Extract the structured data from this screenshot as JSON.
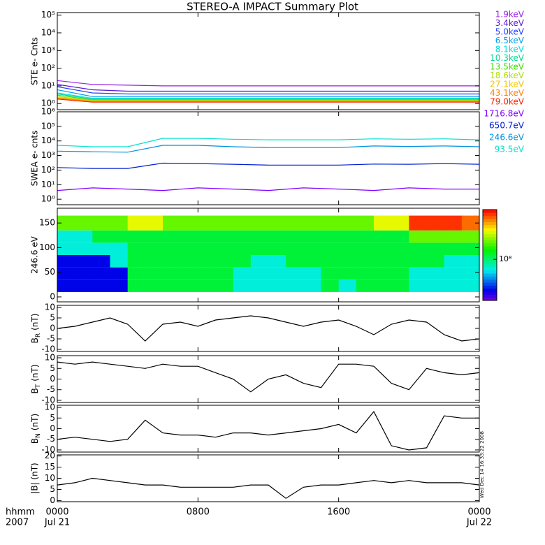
{
  "title": "STEREO-A IMPACT Summary Plot",
  "footer": {
    "time_label": "hhmm",
    "year": "2007",
    "stamp": "Wed Dec 14 16:33:22 2008"
  },
  "chart_data": [
    {
      "type": "line",
      "y_label": "STE e- Cnts",
      "log": true,
      "ylim": [
        0.45,
        140000
      ],
      "yticks": [
        {
          "value": 1,
          "label": "10⁰"
        },
        {
          "value": 10,
          "label": "10¹"
        },
        {
          "value": 100,
          "label": "10²"
        },
        {
          "value": 1000,
          "label": "10³"
        },
        {
          "value": 10000,
          "label": "10⁴"
        },
        {
          "value": 100000,
          "label": "10⁵"
        }
      ],
      "xlim": [
        0,
        24
      ],
      "x": [
        0,
        2,
        4,
        6,
        8,
        10,
        12,
        14,
        16,
        18,
        20,
        22,
        24
      ],
      "legend": "right-outside",
      "series": [
        {
          "name": "1.9keV",
          "color": "#9a1ee6",
          "values": [
            20,
            12,
            11,
            10,
            10,
            10,
            10,
            10,
            10,
            10,
            10,
            10,
            10
          ]
        },
        {
          "name": "3.4keV",
          "color": "#5a14d8",
          "values": [
            12,
            6,
            5,
            5,
            5,
            5,
            5,
            5,
            5,
            5,
            5,
            5,
            5
          ]
        },
        {
          "name": "5.0keV",
          "color": "#2040ff",
          "values": [
            9,
            4,
            3.5,
            3.5,
            3.5,
            3.5,
            3.5,
            3.5,
            3.5,
            3.5,
            3.5,
            3.5,
            3.5
          ]
        },
        {
          "name": "6.5keV",
          "color": "#00a0f0",
          "values": [
            6,
            2.5,
            2.5,
            2.5,
            2.5,
            2.5,
            2.5,
            2.5,
            2.5,
            2.5,
            2.5,
            2.5,
            2.5
          ]
        },
        {
          "name": "8.1keV",
          "color": "#00e0e0",
          "values": [
            4,
            2,
            2,
            2,
            2,
            2,
            2,
            2,
            2,
            2,
            2,
            2,
            2
          ]
        },
        {
          "name": "10.3keV",
          "color": "#00d890",
          "values": [
            3.5,
            1.8,
            1.8,
            1.8,
            1.8,
            1.8,
            1.8,
            1.8,
            1.8,
            1.8,
            1.8,
            1.8,
            1.8
          ]
        },
        {
          "name": "13.5keV",
          "color": "#40e000",
          "values": [
            3,
            1.6,
            1.6,
            1.6,
            1.6,
            1.6,
            1.6,
            1.6,
            1.6,
            1.6,
            1.6,
            1.6,
            1.6
          ]
        },
        {
          "name": "18.6keV",
          "color": "#b0e000",
          "values": [
            2.5,
            1.5,
            1.5,
            1.5,
            1.5,
            1.5,
            1.5,
            1.5,
            1.5,
            1.5,
            1.5,
            1.5,
            1.5
          ]
        },
        {
          "name": "27.1keV",
          "color": "#f0c800",
          "values": [
            2.2,
            1.4,
            1.4,
            1.4,
            1.4,
            1.4,
            1.4,
            1.4,
            1.4,
            1.4,
            1.4,
            1.4,
            1.4
          ]
        },
        {
          "name": "43.1keV",
          "color": "#ff8000",
          "values": [
            2,
            1.3,
            1.3,
            1.3,
            1.3,
            1.3,
            1.3,
            1.3,
            1.3,
            1.3,
            1.3,
            1.3,
            1.3
          ]
        },
        {
          "name": "79.0keV",
          "color": "#ff2000",
          "values": [
            1.8,
            1.2,
            1.2,
            1.2,
            1.2,
            1.2,
            1.2,
            1.2,
            1.2,
            1.2,
            1.2,
            1.2,
            1.2
          ]
        }
      ]
    },
    {
      "type": "line",
      "y_label": "SWEA e- cnts",
      "log": true,
      "ylim": [
        0.42,
        1000000
      ],
      "yticks": [
        {
          "value": 1,
          "label": "10⁰"
        },
        {
          "value": 10,
          "label": "10¹"
        },
        {
          "value": 100,
          "label": "10²"
        },
        {
          "value": 1000,
          "label": "10³"
        },
        {
          "value": 10000,
          "label": "10⁴"
        },
        {
          "value": 100000,
          "label": "10⁵"
        },
        {
          "value": 1000000,
          "label": "10⁶"
        }
      ],
      "xlim": [
        0,
        24
      ],
      "x": [
        0,
        2,
        4,
        6,
        8,
        10,
        12,
        14,
        16,
        18,
        20,
        22,
        24
      ],
      "legend": "right-outside",
      "series": [
        {
          "name": "1716.8eV",
          "color": "#8000ff",
          "values": [
            4,
            6,
            5,
            4,
            6,
            5,
            4,
            6,
            5,
            4,
            6,
            5,
            5
          ]
        },
        {
          "name": "650.7eV",
          "color": "#0020d0",
          "values": [
            150,
            130,
            130,
            300,
            280,
            250,
            220,
            220,
            220,
            260,
            250,
            280,
            250
          ]
        },
        {
          "name": "246.6eV",
          "color": "#0090e0",
          "values": [
            2000,
            1800,
            1700,
            5000,
            5000,
            4000,
            3500,
            3500,
            3500,
            4500,
            4200,
            4500,
            4000
          ]
        },
        {
          "name": "93.5eV",
          "color": "#00e0d0",
          "values": [
            5000,
            4000,
            4000,
            15000,
            15000,
            13000,
            12000,
            12000,
            12000,
            14000,
            13000,
            14000,
            12000
          ]
        }
      ]
    },
    {
      "type": "heatmap",
      "y_label": "246.6 eV",
      "ylim": [
        -10,
        180
      ],
      "yticks": [
        0,
        50,
        100,
        150
      ],
      "xlim": [
        0,
        24
      ],
      "x_edges": [
        0,
        1,
        2,
        3,
        4,
        5,
        6,
        7,
        8,
        9,
        10,
        11,
        12,
        13,
        14,
        15,
        16,
        17,
        18,
        19,
        20,
        21,
        22,
        23,
        24
      ],
      "y_edges": [
        10,
        35,
        60,
        85,
        110,
        135,
        165
      ],
      "clim": [
        20000000,
        700000000
      ],
      "clog": true,
      "cticks": [
        {
          "value": 100000000,
          "label": "10⁸"
        }
      ],
      "z": [
        [
          30000000,
          30000000,
          30000000,
          30000000,
          120000000,
          120000000,
          120000000,
          120000000,
          120000000,
          120000000,
          70000000,
          70000000,
          70000000,
          70000000,
          70000000,
          120000000,
          70000000,
          120000000,
          120000000,
          120000000,
          70000000,
          70000000,
          70000000,
          70000000
        ],
        [
          30000000,
          30000000,
          30000000,
          30000000,
          120000000,
          120000000,
          120000000,
          120000000,
          120000000,
          120000000,
          70000000,
          70000000,
          70000000,
          70000000,
          70000000,
          120000000,
          120000000,
          120000000,
          120000000,
          120000000,
          70000000,
          70000000,
          70000000,
          70000000
        ],
        [
          30000000,
          30000000,
          30000000,
          70000000,
          120000000,
          120000000,
          120000000,
          120000000,
          120000000,
          120000000,
          120000000,
          70000000,
          70000000,
          120000000,
          120000000,
          120000000,
          120000000,
          120000000,
          120000000,
          120000000,
          120000000,
          120000000,
          70000000,
          70000000
        ],
        [
          70000000,
          70000000,
          70000000,
          70000000,
          120000000,
          120000000,
          120000000,
          120000000,
          120000000,
          120000000,
          120000000,
          120000000,
          120000000,
          120000000,
          120000000,
          120000000,
          120000000,
          120000000,
          120000000,
          120000000,
          120000000,
          120000000,
          120000000,
          120000000
        ],
        [
          70000000,
          70000000,
          120000000,
          120000000,
          120000000,
          120000000,
          120000000,
          120000000,
          120000000,
          120000000,
          120000000,
          120000000,
          120000000,
          120000000,
          120000000,
          120000000,
          120000000,
          120000000,
          120000000,
          120000000,
          200000000,
          200000000,
          200000000,
          200000000
        ],
        [
          200000000,
          200000000,
          200000000,
          200000000,
          300000000,
          300000000,
          200000000,
          200000000,
          200000000,
          200000000,
          200000000,
          200000000,
          200000000,
          200000000,
          200000000,
          200000000,
          200000000,
          200000000,
          300000000,
          300000000,
          600000000,
          600000000,
          600000000,
          500000000
        ]
      ]
    },
    {
      "type": "line",
      "y_label": "B",
      "y_label_sub": "R",
      "y_label_unit": "(nT)",
      "ylim": [
        -11,
        11
      ],
      "yticks": [
        -10,
        -5,
        0,
        5,
        10
      ],
      "xlim": [
        0,
        24
      ],
      "x": [
        0,
        1,
        2,
        3,
        4,
        5,
        6,
        7,
        8,
        9,
        10,
        11,
        12,
        13,
        14,
        15,
        16,
        17,
        18,
        19,
        20,
        21,
        22,
        23,
        24
      ],
      "series": [
        {
          "color": "#000000",
          "values": [
            0,
            1,
            3,
            5,
            2,
            -6,
            2,
            3,
            1,
            4,
            5,
            6,
            5,
            3,
            1,
            3,
            4,
            1,
            -3,
            2,
            4,
            3,
            -3,
            -6,
            -5
          ]
        }
      ]
    },
    {
      "type": "line",
      "y_label": "B",
      "y_label_sub": "T",
      "y_label_unit": "(nT)",
      "ylim": [
        -11,
        11
      ],
      "yticks": [
        -10,
        -5,
        0,
        5,
        10
      ],
      "xlim": [
        0,
        24
      ],
      "x": [
        0,
        1,
        2,
        3,
        4,
        5,
        6,
        7,
        8,
        9,
        10,
        11,
        12,
        13,
        14,
        15,
        16,
        17,
        18,
        19,
        20,
        21,
        22,
        23,
        24
      ],
      "series": [
        {
          "color": "#000000",
          "values": [
            8,
            7,
            8,
            7,
            6,
            5,
            7,
            6,
            6,
            3,
            0,
            -6,
            0,
            2,
            -2,
            -4,
            7,
            7,
            6,
            -2,
            -5,
            5,
            3,
            2,
            3
          ]
        }
      ]
    },
    {
      "type": "line",
      "y_label": "B",
      "y_label_sub": "N",
      "y_label_unit": "(nT)",
      "ylim": [
        -11,
        11
      ],
      "yticks": [
        -10,
        -5,
        0,
        5,
        10
      ],
      "xlim": [
        0,
        24
      ],
      "x": [
        0,
        1,
        2,
        3,
        4,
        5,
        6,
        7,
        8,
        9,
        10,
        11,
        12,
        13,
        14,
        15,
        16,
        17,
        18,
        19,
        20,
        21,
        22,
        23,
        24
      ],
      "series": [
        {
          "color": "#000000",
          "values": [
            -5,
            -4,
            -5,
            -6,
            -5,
            4,
            -2,
            -3,
            -3,
            -4,
            -2,
            -2,
            -3,
            -2,
            -1,
            0,
            2,
            -2,
            8,
            -8,
            -10,
            -9,
            6,
            5,
            5
          ]
        }
      ]
    },
    {
      "type": "line",
      "y_label": "|B| (nT)",
      "ylim": [
        -0.5,
        20.5
      ],
      "yticks": [
        0,
        5,
        10,
        15,
        20
      ],
      "xlim": [
        0,
        24
      ],
      "x": [
        0,
        1,
        2,
        3,
        4,
        5,
        6,
        7,
        8,
        9,
        10,
        11,
        12,
        13,
        14,
        15,
        16,
        17,
        18,
        19,
        20,
        21,
        22,
        23,
        24
      ],
      "xticks": [
        {
          "value": 0,
          "label": "0000"
        },
        {
          "value": 8,
          "label": "0800"
        },
        {
          "value": 16,
          "label": "1600"
        },
        {
          "value": 24,
          "label": "0000"
        }
      ],
      "x_dates": [
        {
          "value": 0,
          "label": "Jul 21"
        },
        {
          "value": 24,
          "label": "Jul 22"
        }
      ],
      "series": [
        {
          "color": "#000000",
          "values": [
            7,
            8,
            10,
            9,
            8,
            7,
            7,
            6,
            6,
            6,
            6,
            7,
            7,
            1,
            6,
            7,
            7,
            8,
            9,
            8,
            9,
            8,
            8,
            8,
            7
          ]
        }
      ]
    }
  ]
}
